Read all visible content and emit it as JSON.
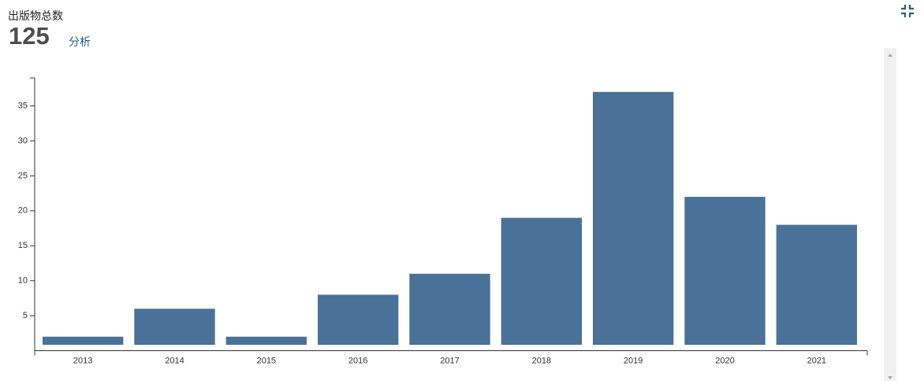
{
  "header": {
    "label": "出版物总数",
    "total": 125,
    "link": "分析"
  },
  "chart_data": {
    "type": "bar",
    "categories": [
      "2013",
      "2014",
      "2015",
      "2016",
      "2017",
      "2018",
      "2019",
      "2020",
      "2021"
    ],
    "values": [
      2,
      6,
      2,
      8,
      11,
      19,
      37,
      22,
      18
    ],
    "color": "#4a7298",
    "ylim": [
      0,
      39
    ],
    "yticks": [
      5,
      10,
      15,
      20,
      25,
      30,
      35
    ],
    "grid": false
  }
}
